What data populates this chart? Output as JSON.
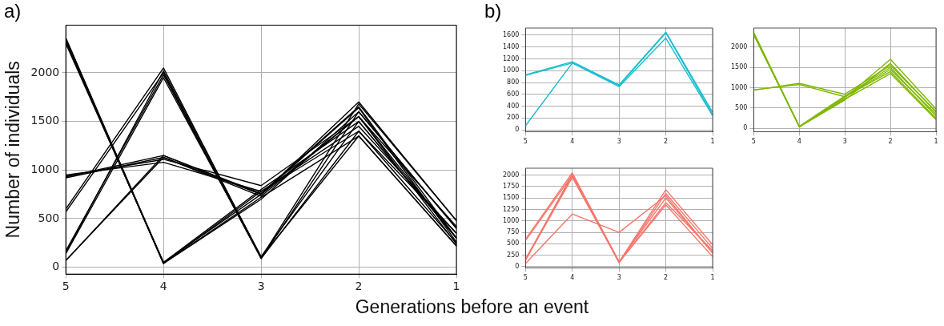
{
  "chart_data": [
    {
      "type": "line",
      "title": "a)",
      "xlabel": "Generations before an event",
      "ylabel": "Number of individuals",
      "categories": [
        "5",
        "4",
        "3",
        "2",
        "1"
      ],
      "ylim": [
        -70,
        2490
      ],
      "yticks": [
        0,
        500,
        1000,
        1500,
        2000
      ],
      "grid": true,
      "legend": false,
      "marker": "none",
      "line_style": "solid",
      "series": [
        {
          "color": "#000000",
          "values": [
            930,
            1150,
            760,
            1650,
            300
          ]
        },
        {
          "color": "#000000",
          "values": [
            920,
            1130,
            730,
            1550,
            240
          ]
        },
        {
          "color": "#000000",
          "values": [
            70,
            1130,
            750,
            1640,
            260
          ]
        },
        {
          "color": "#000000",
          "values": [
            2350,
            50,
            750,
            1700,
            480
          ]
        },
        {
          "color": "#000000",
          "values": [
            2330,
            40,
            700,
            1600,
            400
          ]
        },
        {
          "color": "#000000",
          "values": [
            2300,
            50,
            800,
            1500,
            300
          ]
        },
        {
          "color": "#000000",
          "values": [
            2360,
            40,
            720,
            1350,
            220
          ]
        },
        {
          "color": "#000000",
          "values": [
            2320,
            40,
            780,
            1450,
            350
          ]
        },
        {
          "color": "#000000",
          "values": [
            940,
            1110,
            840,
            1550,
            420
          ]
        },
        {
          "color": "#000000",
          "values": [
            950,
            1080,
            780,
            1400,
            250
          ]
        },
        {
          "color": "#000000",
          "values": [
            600,
            2050,
            100,
            1680,
            480
          ]
        },
        {
          "color": "#000000",
          "values": [
            570,
            2000,
            90,
            1600,
            400
          ]
        },
        {
          "color": "#000000",
          "values": [
            150,
            2020,
            110,
            1500,
            300
          ]
        },
        {
          "color": "#000000",
          "values": [
            140,
            1950,
            100,
            1350,
            220
          ]
        },
        {
          "color": "#000000",
          "values": [
            170,
            1980,
            90,
            1400,
            350
          ]
        },
        {
          "color": "#000000",
          "values": [
            70,
            1150,
            750,
            1550,
            300
          ]
        }
      ]
    },
    {
      "type": "line",
      "title": "b)",
      "categories": [
        "5",
        "4",
        "3",
        "2",
        "1"
      ],
      "ylim": [
        -30,
        1720
      ],
      "yticks": [
        0,
        200,
        400,
        600,
        800,
        1000,
        1200,
        1400,
        1600
      ],
      "grid": true,
      "legend": false,
      "marker": "none",
      "line_style": "solid",
      "series": [
        {
          "color": "#17becf",
          "values": [
            930,
            1150,
            760,
            1650,
            300
          ]
        },
        {
          "color": "#17becf",
          "values": [
            920,
            1130,
            730,
            1550,
            240
          ]
        },
        {
          "color": "#17becf",
          "values": [
            70,
            1130,
            750,
            1640,
            260
          ]
        }
      ]
    },
    {
      "type": "line",
      "categories": [
        "5",
        "4",
        "3",
        "2",
        "1"
      ],
      "ylim": [
        -80,
        2470
      ],
      "yticks": [
        0,
        500,
        1000,
        1500,
        2000
      ],
      "grid": true,
      "legend": false,
      "marker": "none",
      "line_style": "solid",
      "series": [
        {
          "color": "#7fb800",
          "values": [
            2350,
            50,
            750,
            1700,
            480
          ]
        },
        {
          "color": "#7fb800",
          "values": [
            2330,
            40,
            700,
            1600,
            400
          ]
        },
        {
          "color": "#7fb800",
          "values": [
            2300,
            50,
            800,
            1500,
            300
          ]
        },
        {
          "color": "#7fb800",
          "values": [
            2360,
            40,
            720,
            1350,
            220
          ]
        },
        {
          "color": "#7fb800",
          "values": [
            2320,
            40,
            780,
            1450,
            350
          ]
        },
        {
          "color": "#7fb800",
          "values": [
            940,
            1110,
            840,
            1550,
            420
          ]
        },
        {
          "color": "#7fb800",
          "values": [
            950,
            1080,
            780,
            1400,
            250
          ]
        }
      ]
    },
    {
      "type": "line",
      "categories": [
        "5",
        "4",
        "3",
        "2",
        "1"
      ],
      "ylim": [
        -25,
        2150
      ],
      "yticks": [
        0,
        250,
        500,
        750,
        1000,
        1250,
        1500,
        1750,
        2000
      ],
      "grid": true,
      "legend": false,
      "marker": "none",
      "line_style": "solid",
      "series": [
        {
          "color": "#f8766d",
          "values": [
            600,
            2050,
            100,
            1680,
            480
          ]
        },
        {
          "color": "#f8766d",
          "values": [
            570,
            2000,
            90,
            1600,
            400
          ]
        },
        {
          "color": "#f8766d",
          "values": [
            150,
            2020,
            110,
            1500,
            300
          ]
        },
        {
          "color": "#f8766d",
          "values": [
            140,
            1950,
            100,
            1350,
            220
          ]
        },
        {
          "color": "#f8766d",
          "values": [
            170,
            1980,
            90,
            1400,
            350
          ]
        },
        {
          "color": "#f8766d",
          "values": [
            70,
            1150,
            750,
            1550,
            300
          ]
        }
      ]
    }
  ]
}
